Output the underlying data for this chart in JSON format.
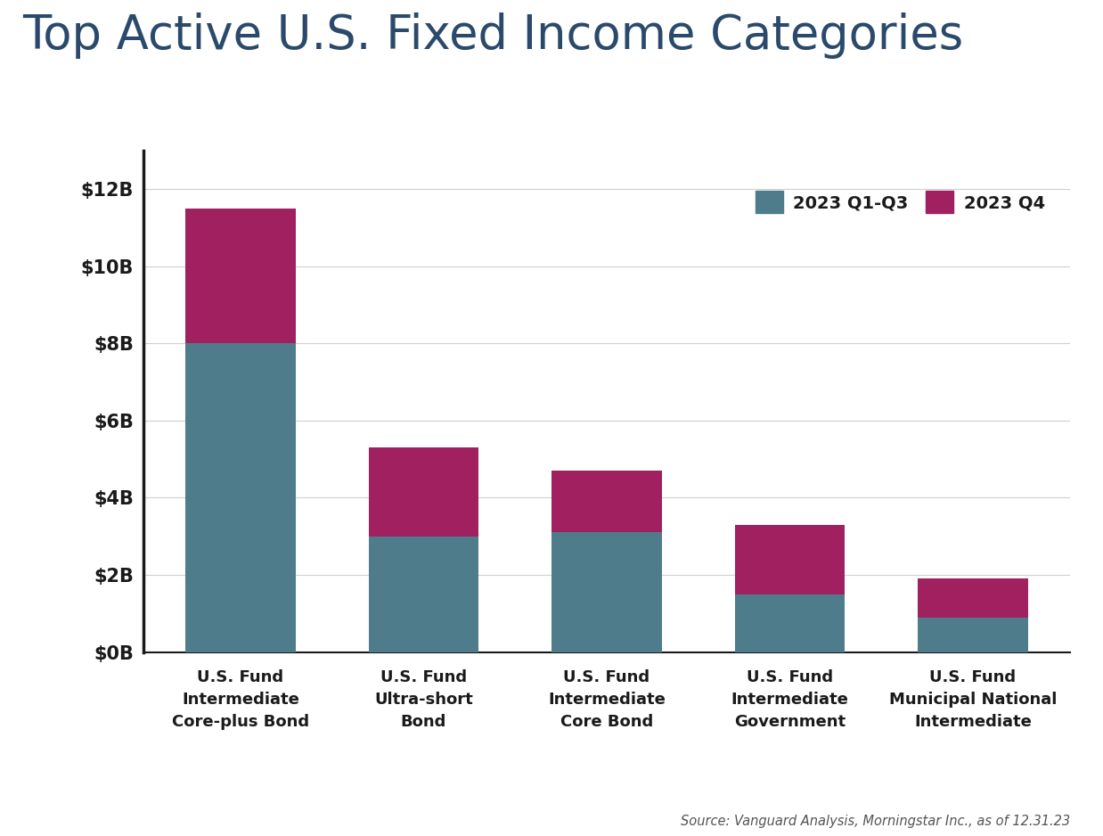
{
  "title": "Top Active U.S. Fixed Income Categories",
  "categories": [
    "U.S. Fund\nIntermediate\nCore-plus Bond",
    "U.S. Fund\nUltra-short\nBond",
    "U.S. Fund\nIntermediate\nCore Bond",
    "U.S. Fund\nIntermediate\nGovernment",
    "U.S. Fund\nMunicipal National\nIntermediate"
  ],
  "q1q3_values": [
    8.0,
    3.0,
    3.1,
    1.5,
    0.9
  ],
  "q4_values": [
    3.5,
    2.3,
    1.6,
    1.8,
    1.0
  ],
  "q1q3_color": "#4e7c8a",
  "q4_color": "#a02060",
  "ylim": [
    0,
    13
  ],
  "yticks": [
    0,
    2,
    4,
    6,
    8,
    10,
    12
  ],
  "ytick_labels": [
    "$0B",
    "$2B",
    "$4B",
    "$6B",
    "$8B",
    "$10B",
    "$12B"
  ],
  "legend_q1q3": "2023 Q1-Q3",
  "legend_q4": "2023 Q4",
  "source_text": "Source: Vanguard Analysis, Morningstar Inc., as of 12.31.23",
  "background_color": "#ffffff",
  "title_color": "#2b4a6b",
  "axis_color": "#1a1a1a",
  "grid_color": "#d0d0d0",
  "bar_width": 0.6
}
